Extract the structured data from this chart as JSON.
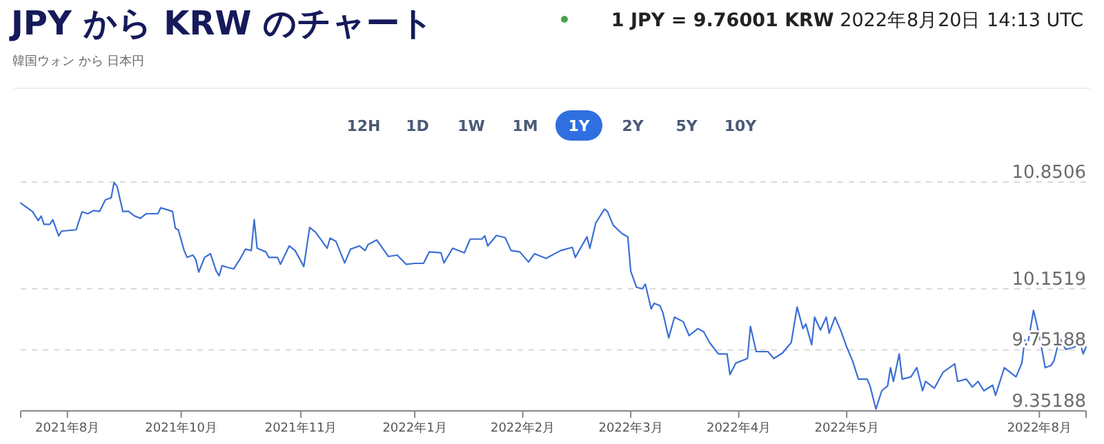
{
  "chart_data": {
    "type": "line",
    "title": "JPY から KRW のチャート",
    "subtitle": "韓国ウォン から 日本円",
    "annotations": [
      "1 JPY = 9.76001 KRW",
      "2022年8月20日 14:13 UTC",
      "12H",
      "1D",
      "1W",
      "1M",
      "1Y",
      "2Y",
      "5Y",
      "10Y"
    ],
    "xlim": [
      "2021-08-20",
      "2022-08-20"
    ],
    "xticks": [
      {
        "value": "2021-08-20",
        "label": null
      },
      {
        "value": "2021-09-05",
        "label": "2021年8月"
      },
      {
        "value": "2021-10-14",
        "label": "2021年10月"
      },
      {
        "value": "2021-11-24",
        "label": "2021年11月"
      },
      {
        "value": "2022-01-02",
        "label": "2022年1月"
      },
      {
        "value": "2022-02-08",
        "label": "2022年2月"
      },
      {
        "value": "2022-03-17",
        "label": "2022年3月"
      },
      {
        "value": "2022-04-23",
        "label": "2022年4月"
      },
      {
        "value": "2022-05-30",
        "label": "2022年5月"
      },
      {
        "value": "2022-08-04",
        "label": "2022年8月"
      },
      {
        "value": "2022-08-20",
        "label": null
      }
    ],
    "ylim": [
      9.35188,
      10.8506
    ],
    "yticks": [
      9.35188,
      9.75188,
      10.1519,
      10.8506
    ],
    "grid": "y",
    "series": [
      {
        "color": "#3b6fd4",
        "x": [
          "2021-08-20",
          "2021-08-24",
          "2021-08-26",
          "2021-08-27",
          "2021-08-28",
          "2021-08-30",
          "2021-08-31",
          "2021-09-02",
          "2021-09-03",
          "2021-09-08",
          "2021-09-10",
          "2021-09-12",
          "2021-09-14",
          "2021-09-16",
          "2021-09-18",
          "2021-09-20",
          "2021-09-21",
          "2021-09-22",
          "2021-09-24",
          "2021-09-26",
          "2021-09-28",
          "2021-09-30",
          "2021-10-02",
          "2021-10-06",
          "2021-10-07",
          "2021-10-11",
          "2021-10-12",
          "2021-10-13",
          "2021-10-15",
          "2021-10-16",
          "2021-10-18",
          "2021-10-19",
          "2021-10-20",
          "2021-10-22",
          "2021-10-24",
          "2021-10-26",
          "2021-10-27",
          "2021-10-28",
          "2021-10-30",
          "2021-11-01",
          "2021-11-03",
          "2021-11-05",
          "2021-11-07",
          "2021-11-08",
          "2021-11-09",
          "2021-11-12",
          "2021-11-13",
          "2021-11-16",
          "2021-11-17",
          "2021-11-20",
          "2021-11-22",
          "2021-11-25",
          "2021-11-27",
          "2021-11-29",
          "2021-12-03",
          "2021-12-04",
          "2021-12-06",
          "2021-12-09",
          "2021-12-11",
          "2021-12-14",
          "2021-12-16",
          "2021-12-17",
          "2021-12-20",
          "2021-12-24",
          "2021-12-27",
          "2021-12-30",
          "2022-01-02",
          "2022-01-05",
          "2022-01-07",
          "2022-01-11",
          "2022-01-12",
          "2022-01-15",
          "2022-01-19",
          "2022-01-21",
          "2022-01-25",
          "2022-01-26",
          "2022-01-27",
          "2022-01-30",
          "2022-02-02",
          "2022-02-04",
          "2022-02-07",
          "2022-02-10",
          "2022-02-12",
          "2022-02-16",
          "2022-02-21",
          "2022-02-25",
          "2022-02-26",
          "2022-03-02",
          "2022-03-03",
          "2022-03-05",
          "2022-03-08",
          "2022-03-09",
          "2022-03-11",
          "2022-03-14",
          "2022-03-16",
          "2022-03-17",
          "2022-03-19",
          "2022-03-21",
          "2022-03-22",
          "2022-03-24",
          "2022-03-25",
          "2022-03-27",
          "2022-03-28",
          "2022-03-30",
          "2022-04-01",
          "2022-04-04",
          "2022-04-06",
          "2022-04-09",
          "2022-04-11",
          "2022-04-13",
          "2022-04-16",
          "2022-04-19",
          "2022-04-20",
          "2022-04-22",
          "2022-04-26",
          "2022-04-27",
          "2022-04-29",
          "2022-05-03",
          "2022-05-05",
          "2022-05-08",
          "2022-05-11",
          "2022-05-13",
          "2022-05-15",
          "2022-05-16",
          "2022-05-18",
          "2022-05-19",
          "2022-05-21",
          "2022-05-23",
          "2022-05-24",
          "2022-05-26",
          "2022-05-28",
          "2022-05-30",
          "2022-06-01",
          "2022-06-03",
          "2022-06-06",
          "2022-06-07",
          "2022-06-09",
          "2022-06-11",
          "2022-06-13",
          "2022-06-14",
          "2022-06-15",
          "2022-06-17",
          "2022-06-18",
          "2022-06-21",
          "2022-06-23",
          "2022-06-25",
          "2022-06-26",
          "2022-06-29",
          "2022-07-02",
          "2022-07-06",
          "2022-07-07",
          "2022-07-10",
          "2022-07-12",
          "2022-07-14",
          "2022-07-16",
          "2022-07-19",
          "2022-07-20",
          "2022-07-23",
          "2022-07-27",
          "2022-07-29",
          "2022-07-30",
          "2022-07-31",
          "2022-08-02",
          "2022-08-04",
          "2022-08-06",
          "2022-08-08",
          "2022-08-09",
          "2022-08-11",
          "2022-08-13",
          "2022-08-16",
          "2022-08-18",
          "2022-08-19",
          "2022-08-20"
        ],
        "values": [
          10.712,
          10.658,
          10.598,
          10.628,
          10.574,
          10.574,
          10.604,
          10.498,
          10.529,
          10.538,
          10.655,
          10.643,
          10.664,
          10.658,
          10.733,
          10.748,
          10.848,
          10.823,
          10.658,
          10.658,
          10.628,
          10.613,
          10.643,
          10.643,
          10.682,
          10.658,
          10.547,
          10.538,
          10.402,
          10.357,
          10.372,
          10.342,
          10.261,
          10.357,
          10.381,
          10.267,
          10.237,
          10.303,
          10.291,
          10.282,
          10.342,
          10.411,
          10.402,
          10.604,
          10.417,
          10.393,
          10.357,
          10.357,
          10.312,
          10.432,
          10.402,
          10.297,
          10.553,
          10.523,
          10.417,
          10.483,
          10.462,
          10.321,
          10.411,
          10.432,
          10.402,
          10.441,
          10.471,
          10.363,
          10.372,
          10.312,
          10.318,
          10.318,
          10.393,
          10.387,
          10.321,
          10.417,
          10.387,
          10.477,
          10.477,
          10.498,
          10.432,
          10.501,
          10.486,
          10.402,
          10.393,
          10.327,
          10.381,
          10.351,
          10.402,
          10.423,
          10.357,
          10.492,
          10.417,
          10.582,
          10.673,
          10.658,
          10.568,
          10.513,
          10.492,
          10.267,
          10.161,
          10.152,
          10.182,
          10.02,
          10.056,
          10.041,
          9.996,
          9.83,
          9.966,
          9.936,
          9.845,
          9.891,
          9.87,
          9.8,
          9.725,
          9.725,
          9.59,
          9.665,
          9.695,
          9.906,
          9.74,
          9.74,
          9.695,
          9.731,
          9.8,
          10.032,
          9.891,
          9.921,
          9.785,
          9.966,
          9.881,
          9.966,
          9.861,
          9.966,
          9.876,
          9.77,
          9.68,
          9.56,
          9.56,
          9.515,
          9.364,
          9.484,
          9.515,
          9.635,
          9.545,
          9.725,
          9.56,
          9.575,
          9.635,
          9.484,
          9.545,
          9.5,
          9.605,
          9.659,
          9.545,
          9.56,
          9.508,
          9.545,
          9.484,
          9.52,
          9.454,
          9.635,
          9.575,
          9.665,
          9.815,
          9.785,
          10.011,
          9.845,
          9.635,
          9.65,
          9.68,
          9.83,
          9.755,
          9.77,
          9.8,
          9.725,
          9.77
        ]
      }
    ]
  }
}
